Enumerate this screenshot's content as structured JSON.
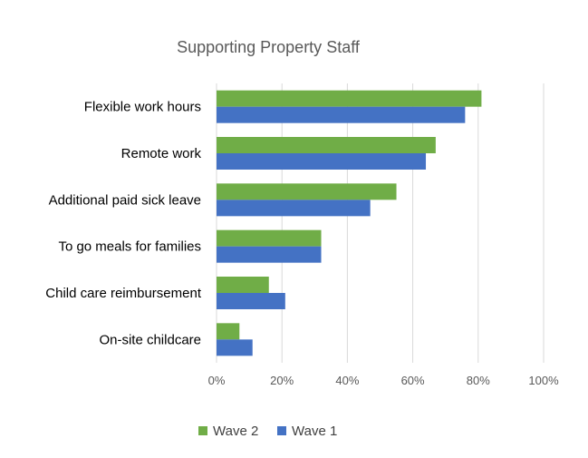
{
  "chart_data": {
    "type": "bar",
    "orientation": "horizontal",
    "title": "Supporting Property Staff",
    "categories": [
      "Flexible work hours",
      "Remote work",
      "Additional paid sick leave",
      "To go meals for families",
      "Child care reimbursement",
      "On-site childcare"
    ],
    "series": [
      {
        "name": "Wave 2",
        "color": "#70AD47",
        "values": [
          81,
          67,
          55,
          32,
          16,
          7
        ]
      },
      {
        "name": "Wave 1",
        "color": "#4472C4",
        "values": [
          76,
          64,
          47,
          32,
          21,
          11
        ]
      }
    ],
    "xlim": [
      0,
      100
    ],
    "x_ticks": [
      "0%",
      "20%",
      "40%",
      "60%",
      "80%",
      "100%"
    ],
    "grid": true,
    "legend_position": "bottom"
  }
}
